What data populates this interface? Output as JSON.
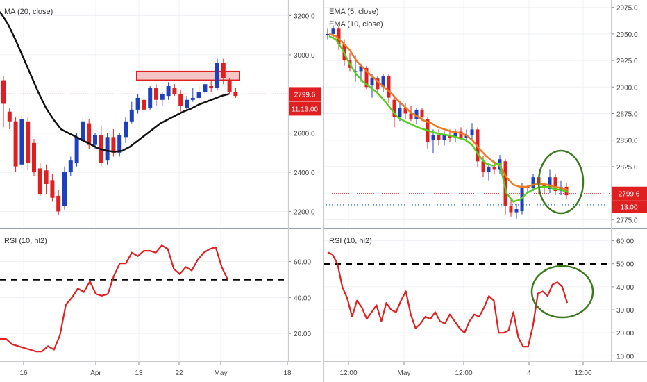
{
  "colors": {
    "bull": "#1e3fbf",
    "bear": "#e02020",
    "ma": "#111111",
    "ema_fast": "#55d020",
    "ema_slow": "#f07a20",
    "rsi": "#e02020",
    "price_line": "#e02020",
    "dotted_blue": "#2a6ec8",
    "circle": "#3c7a1e",
    "grid": "#edf0f4",
    "axis_text": "#444444",
    "label_bg": "#e02020",
    "label_text": "#ffffff"
  },
  "chart_data": [
    {
      "type": "candlestick",
      "title": "MA (20, close)",
      "ylim": [
        2120,
        3280
      ],
      "yticks": [
        "3200.0",
        "3000.0",
        "2800.0",
        "2600.0",
        "2400.0",
        "2200.0"
      ],
      "ytick_values": [
        3200,
        3000,
        2800,
        2600,
        2400,
        2200
      ],
      "xticks": [
        "16",
        "Apr",
        "13",
        "22",
        "May",
        "18"
      ],
      "last_price_label": "2799.6",
      "countdown_label": "11:13:00",
      "last_price": 2799.6,
      "resistance_zone": [
        2870,
        2915
      ],
      "candles": [
        {
          "o": 2870,
          "h": 2890,
          "l": 2630,
          "c": 2750
        },
        {
          "o": 2710,
          "h": 2730,
          "l": 2620,
          "c": 2660
        },
        {
          "o": 2660,
          "h": 2680,
          "l": 2400,
          "c": 2430
        },
        {
          "o": 2440,
          "h": 2690,
          "l": 2420,
          "c": 2670
        },
        {
          "o": 2660,
          "h": 2680,
          "l": 2410,
          "c": 2450
        },
        {
          "o": 2550,
          "h": 2570,
          "l": 2380,
          "c": 2400
        },
        {
          "o": 2420,
          "h": 2450,
          "l": 2280,
          "c": 2290
        },
        {
          "o": 2410,
          "h": 2440,
          "l": 2290,
          "c": 2340
        },
        {
          "o": 2360,
          "h": 2390,
          "l": 2250,
          "c": 2270
        },
        {
          "o": 2280,
          "h": 2310,
          "l": 2180,
          "c": 2200
        },
        {
          "o": 2230,
          "h": 2430,
          "l": 2210,
          "c": 2400
        },
        {
          "o": 2400,
          "h": 2480,
          "l": 2380,
          "c": 2460
        },
        {
          "o": 2450,
          "h": 2600,
          "l": 2430,
          "c": 2580
        },
        {
          "o": 2560,
          "h": 2680,
          "l": 2540,
          "c": 2660
        },
        {
          "o": 2650,
          "h": 2670,
          "l": 2520,
          "c": 2540
        },
        {
          "o": 2540,
          "h": 2600,
          "l": 2520,
          "c": 2590
        },
        {
          "o": 2590,
          "h": 2640,
          "l": 2430,
          "c": 2450
        },
        {
          "o": 2460,
          "h": 2600,
          "l": 2440,
          "c": 2580
        },
        {
          "o": 2580,
          "h": 2620,
          "l": 2480,
          "c": 2500
        },
        {
          "o": 2500,
          "h": 2600,
          "l": 2480,
          "c": 2590
        },
        {
          "o": 2580,
          "h": 2680,
          "l": 2550,
          "c": 2660
        },
        {
          "o": 2660,
          "h": 2760,
          "l": 2650,
          "c": 2720
        },
        {
          "o": 2720,
          "h": 2800,
          "l": 2700,
          "c": 2780
        },
        {
          "o": 2770,
          "h": 2790,
          "l": 2700,
          "c": 2720
        },
        {
          "o": 2730,
          "h": 2840,
          "l": 2720,
          "c": 2830
        },
        {
          "o": 2830,
          "h": 2850,
          "l": 2740,
          "c": 2770
        },
        {
          "o": 2770,
          "h": 2810,
          "l": 2740,
          "c": 2800
        },
        {
          "o": 2790,
          "h": 2860,
          "l": 2770,
          "c": 2840
        },
        {
          "o": 2830,
          "h": 2850,
          "l": 2790,
          "c": 2800
        },
        {
          "o": 2800,
          "h": 2820,
          "l": 2710,
          "c": 2740
        },
        {
          "o": 2730,
          "h": 2790,
          "l": 2720,
          "c": 2770
        },
        {
          "o": 2770,
          "h": 2830,
          "l": 2760,
          "c": 2780
        },
        {
          "o": 2780,
          "h": 2840,
          "l": 2770,
          "c": 2810
        },
        {
          "o": 2810,
          "h": 2860,
          "l": 2800,
          "c": 2850
        },
        {
          "o": 2840,
          "h": 2870,
          "l": 2810,
          "c": 2830
        },
        {
          "o": 2830,
          "h": 2980,
          "l": 2820,
          "c": 2960
        },
        {
          "o": 2960,
          "h": 2980,
          "l": 2850,
          "c": 2880
        },
        {
          "o": 2870,
          "h": 2880,
          "l": 2800,
          "c": 2810
        },
        {
          "o": 2810,
          "h": 2830,
          "l": 2780,
          "c": 2790
        }
      ],
      "ma": [
        3220,
        3160,
        3080,
        2990,
        2900,
        2810,
        2730,
        2670,
        2620,
        2600,
        2580,
        2560,
        2540,
        2520,
        2510,
        2505,
        2510,
        2530,
        2560,
        2590,
        2620,
        2650,
        2670,
        2690,
        2710,
        2725,
        2745,
        2760,
        2775,
        2790,
        2800
      ]
    },
    {
      "type": "candlestick",
      "title": "EMA (5, close)",
      "subtitle": "EMA (10, close)",
      "ylim": [
        2768,
        2982
      ],
      "yticks": [
        "2975.0",
        "2950.0",
        "2925.0",
        "2900.0",
        "2875.0",
        "2850.0",
        "2825.0",
        "2800.0",
        "2775.0"
      ],
      "ytick_values": [
        2975,
        2950,
        2925,
        2900,
        2875,
        2850,
        2825,
        2800,
        2775
      ],
      "xticks": [
        "12:00",
        "May",
        "12:00",
        "4",
        "12:00"
      ],
      "last_price_label": "2799.6",
      "countdown_label": "13:00",
      "last_price": 2799.6,
      "dotted_level": 2789,
      "candles": [
        {
          "o": 2950,
          "h": 2955,
          "l": 2945,
          "c": 2950
        },
        {
          "o": 2950,
          "h": 2958,
          "l": 2945,
          "c": 2955
        },
        {
          "o": 2955,
          "h": 2958,
          "l": 2935,
          "c": 2940
        },
        {
          "o": 2940,
          "h": 2945,
          "l": 2920,
          "c": 2925
        },
        {
          "o": 2925,
          "h": 2932,
          "l": 2915,
          "c": 2918
        },
        {
          "o": 2915,
          "h": 2930,
          "l": 2905,
          "c": 2915
        },
        {
          "o": 2915,
          "h": 2922,
          "l": 2905,
          "c": 2920
        },
        {
          "o": 2918,
          "h": 2920,
          "l": 2898,
          "c": 2900
        },
        {
          "o": 2902,
          "h": 2912,
          "l": 2890,
          "c": 2908
        },
        {
          "o": 2908,
          "h": 2910,
          "l": 2895,
          "c": 2898
        },
        {
          "o": 2900,
          "h": 2912,
          "l": 2895,
          "c": 2910
        },
        {
          "o": 2910,
          "h": 2912,
          "l": 2885,
          "c": 2890
        },
        {
          "o": 2888,
          "h": 2892,
          "l": 2862,
          "c": 2872
        },
        {
          "o": 2872,
          "h": 2885,
          "l": 2868,
          "c": 2880
        },
        {
          "o": 2880,
          "h": 2885,
          "l": 2870,
          "c": 2875
        },
        {
          "o": 2875,
          "h": 2882,
          "l": 2868,
          "c": 2870
        },
        {
          "o": 2870,
          "h": 2880,
          "l": 2865,
          "c": 2878
        },
        {
          "o": 2878,
          "h": 2880,
          "l": 2868,
          "c": 2872
        },
        {
          "o": 2870,
          "h": 2872,
          "l": 2842,
          "c": 2848
        },
        {
          "o": 2850,
          "h": 2860,
          "l": 2838,
          "c": 2855
        },
        {
          "o": 2855,
          "h": 2860,
          "l": 2845,
          "c": 2850
        },
        {
          "o": 2850,
          "h": 2858,
          "l": 2845,
          "c": 2855
        },
        {
          "o": 2855,
          "h": 2860,
          "l": 2848,
          "c": 2852
        },
        {
          "o": 2852,
          "h": 2860,
          "l": 2848,
          "c": 2858
        },
        {
          "o": 2858,
          "h": 2862,
          "l": 2850,
          "c": 2852
        },
        {
          "o": 2852,
          "h": 2860,
          "l": 2848,
          "c": 2855
        },
        {
          "o": 2855,
          "h": 2866,
          "l": 2850,
          "c": 2860
        },
        {
          "o": 2860,
          "h": 2862,
          "l": 2825,
          "c": 2830
        },
        {
          "o": 2830,
          "h": 2835,
          "l": 2815,
          "c": 2820
        },
        {
          "o": 2820,
          "h": 2828,
          "l": 2812,
          "c": 2825
        },
        {
          "o": 2825,
          "h": 2830,
          "l": 2818,
          "c": 2822
        },
        {
          "o": 2822,
          "h": 2836,
          "l": 2818,
          "c": 2832
        },
        {
          "o": 2830,
          "h": 2832,
          "l": 2780,
          "c": 2788
        },
        {
          "o": 2788,
          "h": 2795,
          "l": 2778,
          "c": 2782
        },
        {
          "o": 2782,
          "h": 2790,
          "l": 2776,
          "c": 2785
        },
        {
          "o": 2783,
          "h": 2810,
          "l": 2780,
          "c": 2805
        },
        {
          "o": 2805,
          "h": 2808,
          "l": 2800,
          "c": 2806
        },
        {
          "o": 2805,
          "h": 2818,
          "l": 2802,
          "c": 2815
        },
        {
          "o": 2815,
          "h": 2818,
          "l": 2800,
          "c": 2808
        },
        {
          "o": 2808,
          "h": 2810,
          "l": 2800,
          "c": 2805
        },
        {
          "o": 2804,
          "h": 2822,
          "l": 2800,
          "c": 2815
        },
        {
          "o": 2815,
          "h": 2818,
          "l": 2798,
          "c": 2802
        },
        {
          "o": 2802,
          "h": 2812,
          "l": 2798,
          "c": 2806
        },
        {
          "o": 2806,
          "h": 2810,
          "l": 2795,
          "c": 2798
        }
      ],
      "ema_fast": [
        2948,
        2945,
        2935,
        2922,
        2912,
        2905,
        2900,
        2895,
        2888,
        2880,
        2872,
        2868,
        2865,
        2862,
        2860,
        2858,
        2856,
        2855,
        2854,
        2852,
        2850,
        2845,
        2835,
        2828,
        2826,
        2828,
        2800,
        2792,
        2794,
        2800,
        2804,
        2806,
        2806,
        2804,
        2803,
        2801
      ],
      "ema_slow": [
        2950,
        2948,
        2942,
        2935,
        2925,
        2918,
        2912,
        2906,
        2900,
        2895,
        2888,
        2882,
        2876,
        2872,
        2868,
        2866,
        2862,
        2860,
        2858,
        2857,
        2855,
        2850,
        2842,
        2835,
        2830,
        2826,
        2815,
        2808,
        2806,
        2806,
        2808,
        2809,
        2808,
        2806,
        2805,
        2803
      ]
    },
    {
      "type": "line",
      "title": "RSI (10, hl2)",
      "ylim": [
        5,
        78
      ],
      "yticks": [
        "60.00",
        "40.00",
        "20.00"
      ],
      "ytick_values": [
        60,
        40,
        20
      ],
      "level": 50,
      "values": [
        17,
        17,
        14,
        13,
        12,
        11,
        10,
        10,
        13,
        11,
        19,
        36,
        40,
        45,
        43,
        49,
        42,
        41,
        42,
        52,
        59,
        59,
        65,
        63,
        66,
        66,
        65,
        69,
        67,
        56,
        53,
        57,
        55,
        61,
        65,
        67,
        68,
        57,
        50
      ]
    },
    {
      "type": "line",
      "title": "RSI (10, hl2)",
      "ylim": [
        8,
        65
      ],
      "yticks": [
        "60.00",
        "50.00",
        "40.00",
        "30.00",
        "20.00",
        "10.00"
      ],
      "ytick_values": [
        60,
        50,
        40,
        30,
        20,
        10
      ],
      "level": 50,
      "values": [
        55,
        54,
        50,
        40,
        35,
        27,
        34,
        31,
        26,
        29,
        32,
        25,
        33,
        30,
        29,
        34,
        38,
        28,
        22,
        24,
        27,
        26,
        29,
        25,
        24,
        28,
        25,
        22,
        20,
        25,
        28,
        27,
        31,
        36,
        34,
        20,
        20,
        21,
        29,
        18,
        14,
        14,
        23,
        37,
        38,
        36,
        41,
        42,
        40,
        33
      ]
    }
  ]
}
